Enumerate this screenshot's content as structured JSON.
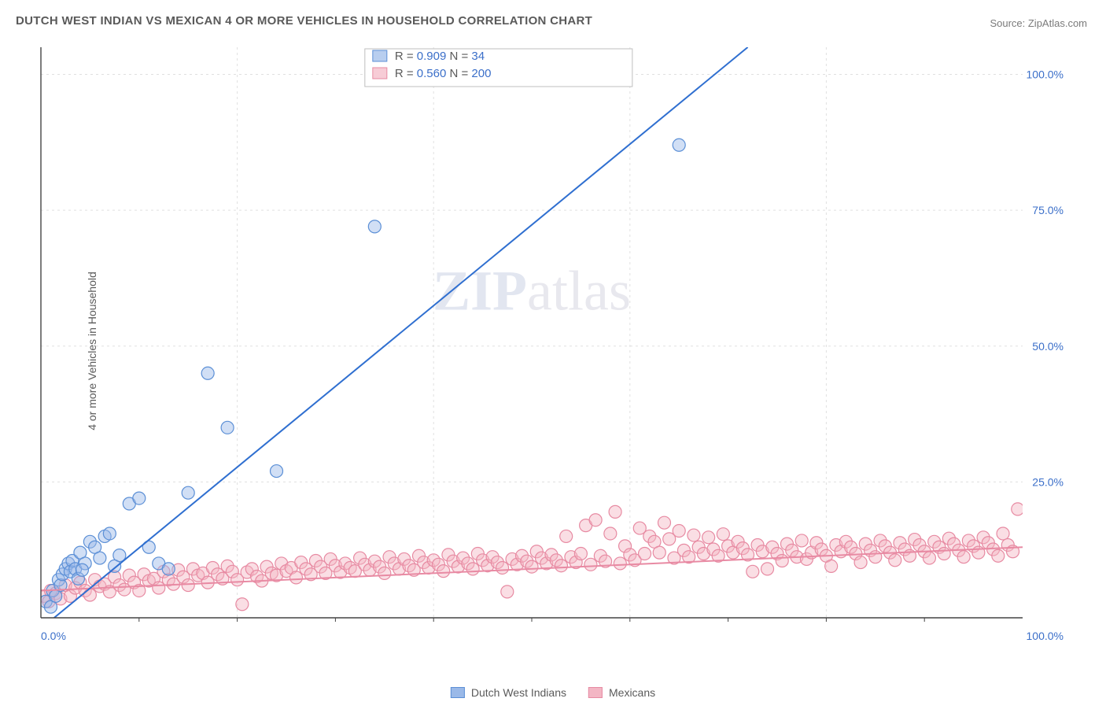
{
  "title": "DUTCH WEST INDIAN VS MEXICAN 4 OR MORE VEHICLES IN HOUSEHOLD CORRELATION CHART",
  "source": "Source: ZipAtlas.com",
  "ylabel": "4 or more Vehicles in Household",
  "watermark": {
    "zip": "ZIP",
    "atlas": "atlas"
  },
  "chart": {
    "type": "scatter-with-regression",
    "background_color": "#ffffff",
    "grid_color": "#e0e0e0",
    "axis_color": "#444444",
    "tick_label_color": "#3b6fc9",
    "tick_label_fontsize": 14,
    "xlim": [
      0,
      100
    ],
    "ylim": [
      0,
      105
    ],
    "xticks": [
      0,
      100
    ],
    "xtick_labels": [
      "0.0%",
      "100.0%"
    ],
    "yticks": [
      25,
      50,
      75,
      100
    ],
    "ytick_labels": [
      "25.0%",
      "50.0%",
      "75.0%",
      "100.0%"
    ],
    "x_minor_grid_step": 20,
    "marker_radius": 8,
    "marker_stroke_width": 1.2,
    "line_width": 2,
    "series": [
      {
        "name": "Dutch West Indians",
        "fill": "#9ab9e8",
        "fill_opacity": 0.45,
        "stroke": "#5b8fd6",
        "line_color": "#2f6fd0",
        "R": "0.909",
        "N": "34",
        "regression": {
          "x1": 0,
          "y1": -2,
          "x2": 72,
          "y2": 105
        },
        "points": [
          [
            0.5,
            3
          ],
          [
            1,
            2
          ],
          [
            1.2,
            5
          ],
          [
            1.5,
            4
          ],
          [
            1.8,
            7
          ],
          [
            2,
            6
          ],
          [
            2.2,
            8
          ],
          [
            2.5,
            9
          ],
          [
            2.8,
            10
          ],
          [
            3,
            8.5
          ],
          [
            3.2,
            10.5
          ],
          [
            3.5,
            9
          ],
          [
            4,
            12
          ],
          [
            4.5,
            10
          ],
          [
            5,
            14
          ],
          [
            5.5,
            13
          ],
          [
            6,
            11
          ],
          [
            6.5,
            15
          ],
          [
            7,
            15.5
          ],
          [
            7.5,
            9.5
          ],
          [
            8,
            11.5
          ],
          [
            9,
            21
          ],
          [
            10,
            22
          ],
          [
            11,
            13
          ],
          [
            12,
            10
          ],
          [
            13,
            9
          ],
          [
            15,
            23
          ],
          [
            17,
            45
          ],
          [
            19,
            35
          ],
          [
            24,
            27
          ],
          [
            34,
            72
          ],
          [
            65,
            87
          ],
          [
            3.8,
            7.2
          ],
          [
            4.2,
            8.8
          ]
        ]
      },
      {
        "name": "Mexicans",
        "fill": "#f3b6c4",
        "fill_opacity": 0.45,
        "stroke": "#e78aa2",
        "line_color": "#e88aa3",
        "R": "0.560",
        "N": "200",
        "regression": {
          "x1": 0,
          "y1": 5,
          "x2": 100,
          "y2": 13
        },
        "points": [
          [
            0.3,
            4
          ],
          [
            0.8,
            3
          ],
          [
            1,
            5
          ],
          [
            1.5,
            4.5
          ],
          [
            2,
            3.5
          ],
          [
            2.5,
            6
          ],
          [
            3,
            4
          ],
          [
            3.5,
            5.5
          ],
          [
            4,
            6.5
          ],
          [
            4.5,
            5
          ],
          [
            5,
            4.2
          ],
          [
            5.5,
            7
          ],
          [
            6,
            5.8
          ],
          [
            6.5,
            6.2
          ],
          [
            7,
            4.8
          ],
          [
            7.5,
            7.5
          ],
          [
            8,
            6
          ],
          [
            8.5,
            5.2
          ],
          [
            9,
            7.8
          ],
          [
            9.5,
            6.5
          ],
          [
            10,
            5
          ],
          [
            10.5,
            8
          ],
          [
            11,
            6.8
          ],
          [
            11.5,
            7.2
          ],
          [
            12,
            5.5
          ],
          [
            12.5,
            8.5
          ],
          [
            13,
            7
          ],
          [
            13.5,
            6.2
          ],
          [
            14,
            8.8
          ],
          [
            14.5,
            7.5
          ],
          [
            15,
            6
          ],
          [
            15.5,
            9
          ],
          [
            16,
            7.8
          ],
          [
            16.5,
            8.2
          ],
          [
            17,
            6.5
          ],
          [
            17.5,
            9.2
          ],
          [
            18,
            8
          ],
          [
            18.5,
            7.2
          ],
          [
            19,
            9.5
          ],
          [
            19.5,
            8.5
          ],
          [
            20,
            7
          ],
          [
            20.5,
            2.5
          ],
          [
            21,
            8.4
          ],
          [
            21.5,
            9
          ],
          [
            22,
            7.6
          ],
          [
            22.5,
            6.8
          ],
          [
            23,
            9.4
          ],
          [
            23.5,
            8.2
          ],
          [
            24,
            7.8
          ],
          [
            24.5,
            10
          ],
          [
            25,
            8.6
          ],
          [
            25.5,
            9.2
          ],
          [
            26,
            7.4
          ],
          [
            26.5,
            10.2
          ],
          [
            27,
            9
          ],
          [
            27.5,
            8
          ],
          [
            28,
            10.5
          ],
          [
            28.5,
            9.4
          ],
          [
            29,
            8.2
          ],
          [
            29.5,
            10.8
          ],
          [
            30,
            9.6
          ],
          [
            30.5,
            8.4
          ],
          [
            31,
            10
          ],
          [
            31.5,
            9.2
          ],
          [
            32,
            8.6
          ],
          [
            32.5,
            11
          ],
          [
            33,
            9.8
          ],
          [
            33.5,
            8.8
          ],
          [
            34,
            10.4
          ],
          [
            34.5,
            9.4
          ],
          [
            35,
            8.2
          ],
          [
            35.5,
            11.2
          ],
          [
            36,
            10
          ],
          [
            36.5,
            9
          ],
          [
            37,
            10.8
          ],
          [
            37.5,
            9.6
          ],
          [
            38,
            8.8
          ],
          [
            38.5,
            11.4
          ],
          [
            39,
            10.2
          ],
          [
            39.5,
            9.2
          ],
          [
            40,
            10.6
          ],
          [
            40.5,
            9.8
          ],
          [
            41,
            8.6
          ],
          [
            41.5,
            11.6
          ],
          [
            42,
            10.4
          ],
          [
            42.5,
            9.4
          ],
          [
            43,
            11
          ],
          [
            43.5,
            10
          ],
          [
            44,
            9
          ],
          [
            44.5,
            11.8
          ],
          [
            45,
            10.6
          ],
          [
            45.5,
            9.6
          ],
          [
            46,
            11.2
          ],
          [
            46.5,
            10.2
          ],
          [
            47,
            9.2
          ],
          [
            47.5,
            4.8
          ],
          [
            48,
            10.8
          ],
          [
            48.5,
            9.8
          ],
          [
            49,
            11.4
          ],
          [
            49.5,
            10.4
          ],
          [
            50,
            9.4
          ],
          [
            50.5,
            12.2
          ],
          [
            51,
            11
          ],
          [
            51.5,
            10
          ],
          [
            52,
            11.6
          ],
          [
            52.5,
            10.6
          ],
          [
            53,
            9.6
          ],
          [
            53.5,
            15
          ],
          [
            54,
            11.2
          ],
          [
            54.5,
            10.2
          ],
          [
            55,
            11.8
          ],
          [
            55.5,
            17
          ],
          [
            56,
            9.8
          ],
          [
            56.5,
            18
          ],
          [
            57,
            11.4
          ],
          [
            57.5,
            10.4
          ],
          [
            58,
            15.5
          ],
          [
            58.5,
            19.5
          ],
          [
            59,
            10
          ],
          [
            59.5,
            13.2
          ],
          [
            60,
            11.6
          ],
          [
            60.5,
            10.6
          ],
          [
            61,
            16.5
          ],
          [
            61.5,
            11.8
          ],
          [
            62,
            15
          ],
          [
            62.5,
            14
          ],
          [
            63,
            12
          ],
          [
            63.5,
            17.5
          ],
          [
            64,
            14.5
          ],
          [
            64.5,
            11
          ],
          [
            65,
            16
          ],
          [
            65.5,
            12.4
          ],
          [
            66,
            11.2
          ],
          [
            66.5,
            15.2
          ],
          [
            67,
            13
          ],
          [
            67.5,
            11.8
          ],
          [
            68,
            14.8
          ],
          [
            68.5,
            12.6
          ],
          [
            69,
            11.4
          ],
          [
            69.5,
            15.4
          ],
          [
            70,
            13.2
          ],
          [
            70.5,
            12
          ],
          [
            71,
            14
          ],
          [
            71.5,
            12.8
          ],
          [
            72,
            11.6
          ],
          [
            72.5,
            8.5
          ],
          [
            73,
            13.4
          ],
          [
            73.5,
            12.2
          ],
          [
            74,
            9
          ],
          [
            74.5,
            13
          ],
          [
            75,
            11.8
          ],
          [
            75.5,
            10.5
          ],
          [
            76,
            13.6
          ],
          [
            76.5,
            12.4
          ],
          [
            77,
            11.2
          ],
          [
            77.5,
            14.2
          ],
          [
            78,
            10.8
          ],
          [
            78.5,
            12
          ],
          [
            79,
            13.8
          ],
          [
            79.5,
            12.6
          ],
          [
            80,
            11.4
          ],
          [
            80.5,
            9.5
          ],
          [
            81,
            13.4
          ],
          [
            81.5,
            12.2
          ],
          [
            82,
            14
          ],
          [
            82.5,
            13
          ],
          [
            83,
            11.8
          ],
          [
            83.5,
            10.2
          ],
          [
            84,
            13.6
          ],
          [
            84.5,
            12.4
          ],
          [
            85,
            11.2
          ],
          [
            85.5,
            14.2
          ],
          [
            86,
            13.2
          ],
          [
            86.5,
            12
          ],
          [
            87,
            10.6
          ],
          [
            87.5,
            13.8
          ],
          [
            88,
            12.6
          ],
          [
            88.5,
            11.4
          ],
          [
            89,
            14.4
          ],
          [
            89.5,
            13.4
          ],
          [
            90,
            12.2
          ],
          [
            90.5,
            11
          ],
          [
            91,
            14
          ],
          [
            91.5,
            13
          ],
          [
            92,
            11.8
          ],
          [
            92.5,
            14.6
          ],
          [
            93,
            13.6
          ],
          [
            93.5,
            12.4
          ],
          [
            94,
            11.2
          ],
          [
            94.5,
            14.2
          ],
          [
            95,
            13.2
          ],
          [
            95.5,
            12
          ],
          [
            96,
            14.8
          ],
          [
            96.5,
            13.8
          ],
          [
            97,
            12.6
          ],
          [
            97.5,
            11.4
          ],
          [
            98,
            15.5
          ],
          [
            98.5,
            13.4
          ],
          [
            99,
            12.2
          ],
          [
            99.5,
            20
          ]
        ]
      }
    ],
    "stats_box": {
      "border_color": "#bfbfbf",
      "bg": "#ffffff",
      "label_color": "#5a5a5a",
      "value_color": "#3b6fc9",
      "fontsize": 15
    },
    "bottom_legend_items": [
      {
        "label": "Dutch West Indians",
        "fill": "#9ab9e8",
        "stroke": "#5b8fd6"
      },
      {
        "label": "Mexicans",
        "fill": "#f3b6c4",
        "stroke": "#e78aa2"
      }
    ]
  }
}
